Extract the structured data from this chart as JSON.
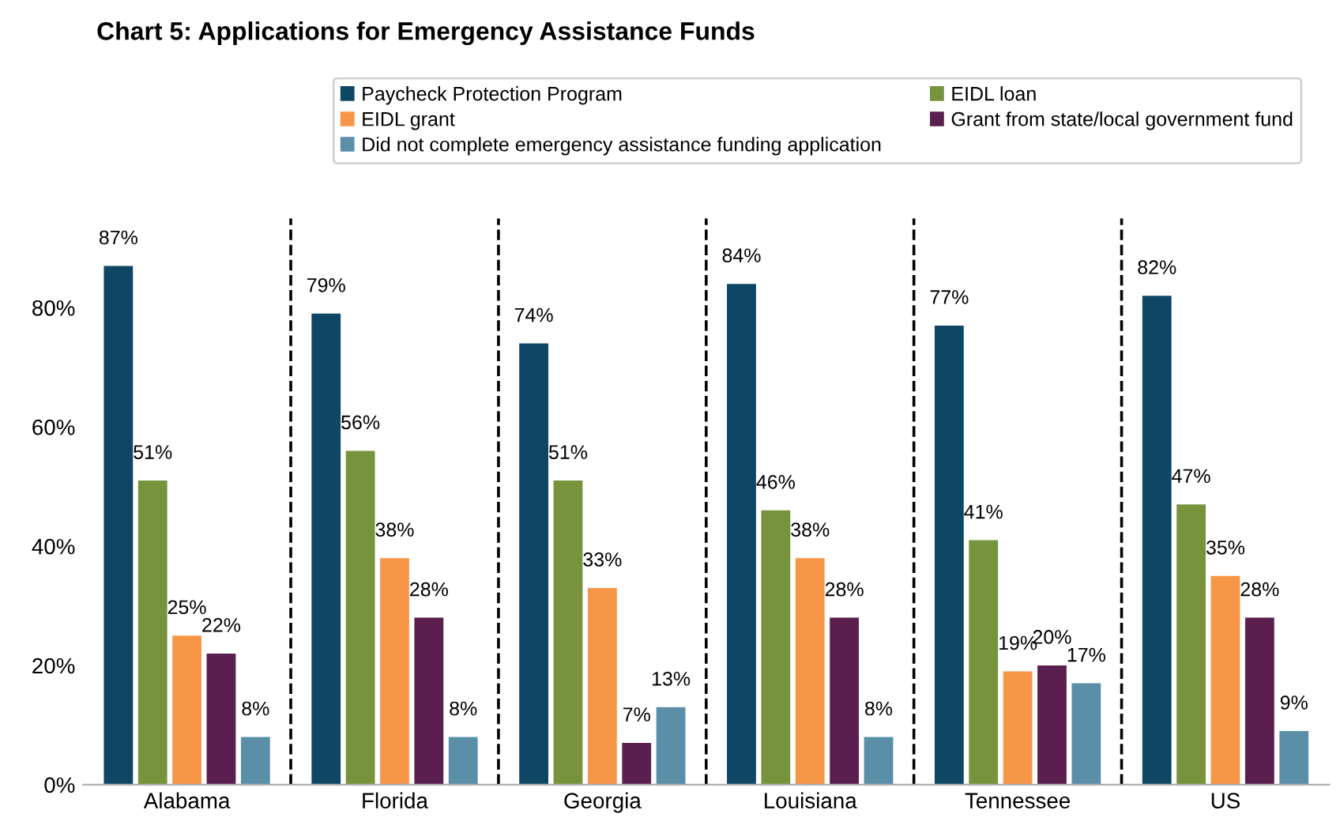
{
  "chart_data": {
    "type": "bar",
    "title": "Chart 5: Applications for Emergency Assistance Funds",
    "categories": [
      "Alabama",
      "Florida",
      "Georgia",
      "Louisiana",
      "Tennessee",
      "US"
    ],
    "series": [
      {
        "name": "Paycheck Protection Program",
        "color": "#0e4663",
        "values": [
          87,
          79,
          74,
          84,
          77,
          82
        ],
        "value_labels": [
          "87%",
          "79%",
          "74%",
          "84%",
          "77%",
          "82%"
        ]
      },
      {
        "name": "EIDL loan",
        "color": "#77933c",
        "values": [
          51,
          56,
          51,
          46,
          41,
          47
        ],
        "value_labels": [
          "51%",
          "56%",
          "51%",
          "46%",
          "41%",
          "47%"
        ]
      },
      {
        "name": "EIDL grant",
        "color": "#f79646",
        "values": [
          25,
          38,
          33,
          38,
          19,
          35
        ],
        "value_labels": [
          "25%",
          "38%",
          "33%",
          "38%",
          "19%",
          "35%"
        ]
      },
      {
        "name": "Grant from state/local government fund",
        "color": "#5b1f4f",
        "values": [
          22,
          28,
          7,
          28,
          20,
          28
        ],
        "value_labels": [
          "22%",
          "28%",
          "7%",
          "28%",
          "20%",
          "28%"
        ]
      },
      {
        "name": "Did not complete emergency assistance funding application",
        "color": "#5b8fa8",
        "values": [
          8,
          8,
          13,
          8,
          17,
          9
        ],
        "value_labels": [
          "8%",
          "8%",
          "13%",
          "8%",
          "17%",
          "9%"
        ]
      }
    ],
    "ylim": [
      0,
      95
    ],
    "yticks": [
      {
        "value": 0,
        "label": "0%"
      },
      {
        "value": 20,
        "label": "20%"
      },
      {
        "value": 40,
        "label": "40%"
      },
      {
        "value": 60,
        "label": "60%"
      },
      {
        "value": 80,
        "label": "80%"
      }
    ],
    "grid": false,
    "legend": "top"
  }
}
